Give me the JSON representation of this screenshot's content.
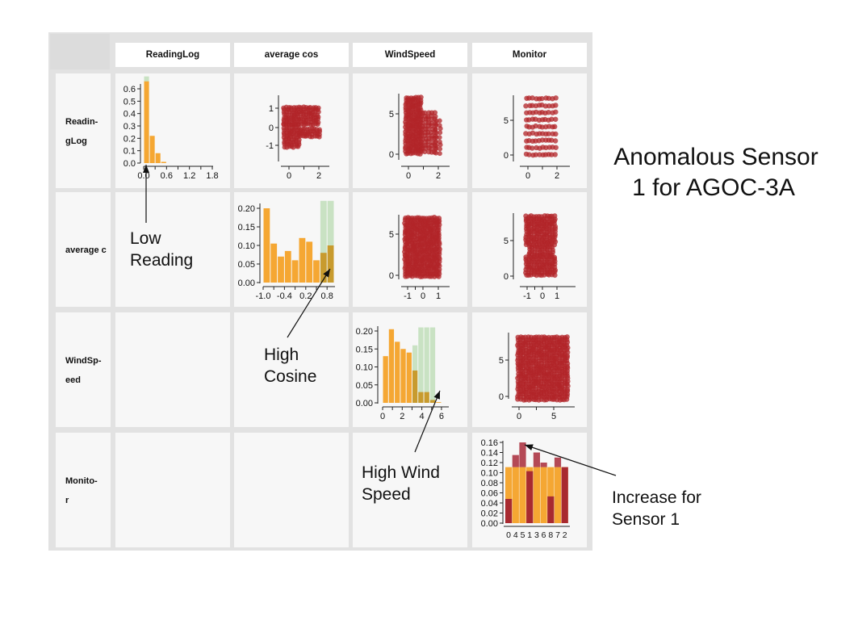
{
  "title": "Anomalous Sensor 1 for AGOC-3A",
  "title_lines": [
    "Anomalous Sensor",
    "1 for AGOC-3A"
  ],
  "columns": [
    "ReadingLog",
    "average cos",
    "WindSpeed",
    "Monitor"
  ],
  "rows": [
    {
      "label_lines": [
        "Readin-",
        "gLog"
      ]
    },
    {
      "label_lines": [
        "average c"
      ]
    },
    {
      "label_lines": [
        "WindSp-",
        "eed"
      ]
    },
    {
      "label_lines": [
        "Monito-",
        "r"
      ]
    }
  ],
  "annotations": {
    "low_reading": [
      "Low",
      "Reading"
    ],
    "high_cosine": [
      "High",
      "Cosine"
    ],
    "high_wind": [
      "High Wind",
      "Speed"
    ],
    "sensor1": [
      "Increase for",
      "Sensor 1"
    ]
  },
  "colors": {
    "orange": "#F5A733",
    "dark_orange": "#E8901A",
    "green_bg": "#C9E2C3",
    "red": "#B22428",
    "dark_red": "#9B2230",
    "cell_bg": "#F7F7F7",
    "grid_bg": "#E2E2E2",
    "corner": "#DCDCDC"
  },
  "chart_data": [
    {
      "type": "bar",
      "id": "readinglog-hist",
      "xlim": [
        0.0,
        1.8
      ],
      "ylim": [
        0.0,
        0.6
      ],
      "x_ticks": [
        "0.0",
        "0.6",
        "1.2",
        "1.8"
      ],
      "y_ticks": [
        "0.0",
        "0.1",
        "0.2",
        "0.3",
        "0.4",
        "0.5",
        "0.6"
      ],
      "bins": [
        {
          "x0": 0.0,
          "x1": 0.15,
          "all": 0.7,
          "selected": 0.66
        },
        {
          "x0": 0.15,
          "x1": 0.3,
          "all": 0.22,
          "selected": 0.22
        },
        {
          "x0": 0.3,
          "x1": 0.45,
          "all": 0.08,
          "selected": 0.08
        },
        {
          "x0": 0.45,
          "x1": 0.6,
          "all": 0.01,
          "selected": 0.01
        }
      ]
    },
    {
      "type": "bar",
      "id": "averagecos-hist",
      "xlim": [
        -1.0,
        1.0
      ],
      "ylim": [
        0.0,
        0.2
      ],
      "x_ticks": [
        "-1.0",
        "-0.4",
        "0.2",
        "0.8"
      ],
      "y_ticks": [
        "0.00",
        "0.05",
        "0.10",
        "0.15",
        "0.20"
      ],
      "bins": [
        {
          "x0": -1.0,
          "x1": -0.8,
          "all": 0.2,
          "selected": 0.2
        },
        {
          "x0": -0.8,
          "x1": -0.6,
          "all": 0.105,
          "selected": 0.105
        },
        {
          "x0": -0.6,
          "x1": -0.4,
          "all": 0.07,
          "selected": 0.07
        },
        {
          "x0": -0.4,
          "x1": -0.2,
          "all": 0.085,
          "selected": 0.085
        },
        {
          "x0": -0.2,
          "x1": 0.0,
          "all": 0.06,
          "selected": 0.06
        },
        {
          "x0": 0.0,
          "x1": 0.2,
          "all": 0.12,
          "selected": 0.12
        },
        {
          "x0": 0.2,
          "x1": 0.4,
          "all": 0.11,
          "selected": 0.11
        },
        {
          "x0": 0.4,
          "x1": 0.6,
          "all": 0.06,
          "selected": 0.06
        },
        {
          "x0": 0.6,
          "x1": 0.8,
          "all": 0.22,
          "selected": 0.08,
          "highlight": true
        },
        {
          "x0": 0.8,
          "x1": 1.0,
          "all": 0.22,
          "selected": 0.1,
          "highlight": true
        }
      ]
    },
    {
      "type": "bar",
      "id": "windspeed-hist",
      "xlim": [
        0,
        6.5
      ],
      "ylim": [
        0.0,
        0.2
      ],
      "x_ticks": [
        "0",
        "2",
        "4",
        "6"
      ],
      "y_ticks": [
        "0.00",
        "0.05",
        "0.10",
        "0.15",
        "0.20"
      ],
      "bins": [
        {
          "x0": 0.0,
          "x1": 0.6,
          "all": 0.13,
          "selected": 0.13
        },
        {
          "x0": 0.6,
          "x1": 1.2,
          "all": 0.205,
          "selected": 0.205
        },
        {
          "x0": 1.2,
          "x1": 1.8,
          "all": 0.17,
          "selected": 0.17
        },
        {
          "x0": 1.8,
          "x1": 2.4,
          "all": 0.15,
          "selected": 0.15
        },
        {
          "x0": 2.4,
          "x1": 3.0,
          "all": 0.14,
          "selected": 0.14
        },
        {
          "x0": 3.0,
          "x1": 3.6,
          "all": 0.16,
          "selected": 0.09,
          "highlight": true
        },
        {
          "x0": 3.6,
          "x1": 4.2,
          "all": 0.21,
          "selected": 0.03,
          "highlight": true
        },
        {
          "x0": 4.2,
          "x1": 4.8,
          "all": 0.21,
          "selected": 0.03,
          "highlight": true
        },
        {
          "x0": 4.8,
          "x1": 5.4,
          "all": 0.21,
          "selected": 0.008,
          "highlight": true
        },
        {
          "x0": 5.4,
          "x1": 6.0,
          "all": 0.0,
          "selected": 0.002
        }
      ]
    },
    {
      "type": "bar",
      "id": "monitor-hist",
      "categories": [
        "0",
        "4",
        "5",
        "1",
        "3",
        "6",
        "8",
        "7",
        "2"
      ],
      "ylim": [
        0.0,
        0.16
      ],
      "y_ticks": [
        "0.00",
        "0.02",
        "0.04",
        "0.06",
        "0.08",
        "0.10",
        "0.12",
        "0.14",
        "0.16"
      ],
      "series": [
        {
          "name": "",
          "values": [
            0.111,
            0.111,
            0.111,
            0.111,
            0.111,
            0.111,
            0.111,
            0.111,
            0.111
          ]
        },
        {
          "name": "",
          "values": [
            0.048,
            0.135,
            0.16,
            0.103,
            0.14,
            0.12,
            0.053,
            0.13,
            0.111
          ]
        }
      ]
    },
    {
      "type": "scatter",
      "id": "scatter-r1-avgcos",
      "x_ticks": [
        "0",
        "2"
      ],
      "y_ticks": [
        "1",
        "0",
        "-1"
      ],
      "xlim": [
        -0.5,
        2.5
      ],
      "ylim": [
        -1.5,
        1.5
      ]
    },
    {
      "type": "scatter",
      "id": "scatter-r1-wind",
      "x_ticks": [
        "0",
        "2"
      ],
      "y_ticks": [
        "5",
        "0"
      ],
      "xlim": [
        -0.5,
        2.5
      ],
      "ylim": [
        -0.5,
        8
      ]
    },
    {
      "type": "scatter",
      "id": "scatter-r1-monitor",
      "x_ticks": [
        "0",
        "2"
      ],
      "y_ticks": [
        "5",
        "0"
      ],
      "xlim": [
        -0.5,
        2.5
      ],
      "ylim": [
        -0.5,
        8.5
      ]
    },
    {
      "type": "scatter",
      "id": "scatter-r2-wind",
      "x_ticks": [
        "-1",
        "0",
        "1"
      ],
      "y_ticks": [
        "5",
        "0"
      ],
      "xlim": [
        -1.6,
        1.6
      ],
      "ylim": [
        -0.5,
        8
      ]
    },
    {
      "type": "scatter",
      "id": "scatter-r2-monitor",
      "x_ticks": [
        "-1",
        "0",
        "1"
      ],
      "y_ticks": [
        "5",
        "0"
      ],
      "xlim": [
        -1.6,
        1.6
      ],
      "ylim": [
        -0.5,
        8.5
      ]
    },
    {
      "type": "scatter",
      "id": "scatter-r3-monitor",
      "x_ticks": [
        "0",
        "5"
      ],
      "y_ticks": [
        "5",
        "0"
      ],
      "xlim": [
        -0.5,
        7.5
      ],
      "ylim": [
        -0.5,
        8.5
      ]
    }
  ]
}
